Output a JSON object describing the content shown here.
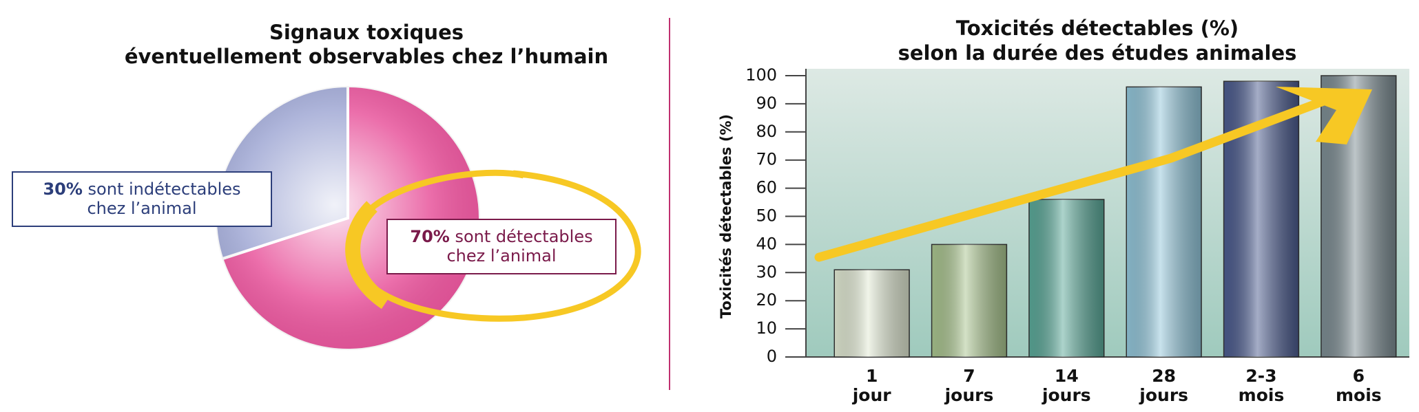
{
  "chart_data": [
    {
      "type": "pie",
      "title": [
        "Signaux toxiques",
        "éventuellement observables chez l’humain"
      ],
      "categories": [
        [
          "sont détectables",
          "chez l’animal"
        ],
        [
          "sont indétectables",
          "chez l’animal"
        ]
      ],
      "values": [
        70,
        30
      ],
      "value_labels": [
        "70%",
        "30%"
      ],
      "colors": [
        "#e8559c",
        "#a0a8d4"
      ],
      "text_colors": [
        "#7a1a4a",
        "#2c3e7a"
      ]
    },
    {
      "type": "bar",
      "title": [
        "Toxicités détectables (%)",
        "selon la durée des études animales"
      ],
      "ylabel": "Toxicités détectables (%)",
      "categories": [
        [
          "1",
          "jour"
        ],
        [
          "7",
          "jours"
        ],
        [
          "14",
          "jours"
        ],
        [
          "28",
          "jours"
        ],
        [
          "2-3",
          "mois"
        ],
        [
          "6",
          "mois"
        ]
      ],
      "values": [
        31,
        40,
        56,
        96,
        98,
        100
      ],
      "colors": [
        "#e2ead4",
        "#a9c48e",
        "#5aa898",
        "#92c6da",
        "#4b5b8e",
        "#7c8c92"
      ],
      "ylim": [
        0,
        100
      ],
      "yticks": [
        0,
        10,
        20,
        30,
        40,
        50,
        60,
        70,
        80,
        90,
        100
      ]
    }
  ]
}
